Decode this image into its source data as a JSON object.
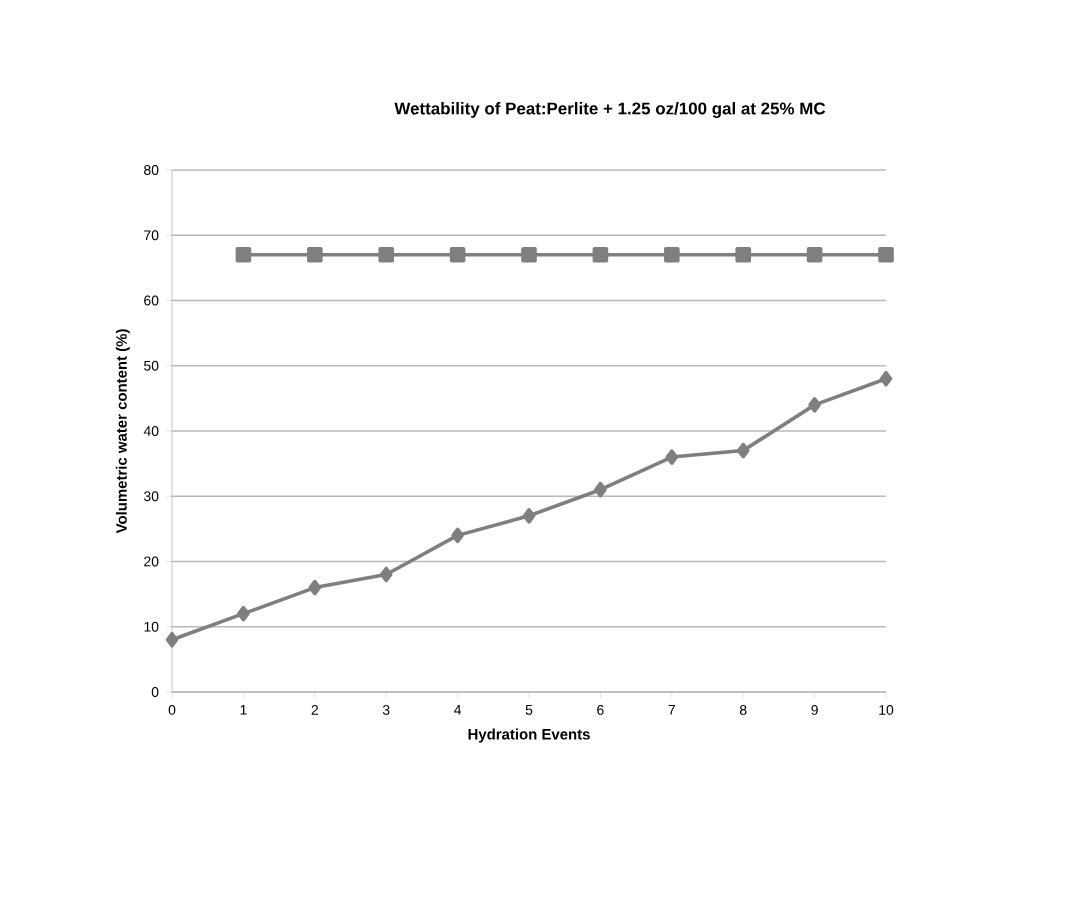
{
  "chart_data": {
    "type": "line",
    "title": "Wettability of Peat:Perlite + 1.25 oz/100 gal at 25% MC",
    "xlabel": "Hydration Events",
    "ylabel": "Volumetric water content (%)",
    "x": [
      0,
      1,
      2,
      3,
      4,
      5,
      6,
      7,
      8,
      9,
      10
    ],
    "series": [
      {
        "color": "#7f7f7f",
        "marker": "diamond",
        "values": [
          8,
          12,
          16,
          18,
          24,
          27,
          31,
          36,
          37,
          44,
          48
        ]
      },
      {
        "color": "#7f7f7f",
        "marker": "square",
        "x": [
          1,
          2,
          3,
          4,
          5,
          6,
          7,
          8,
          9,
          10
        ],
        "values": [
          67,
          67,
          67,
          67,
          67,
          67,
          67,
          67,
          67,
          67
        ]
      }
    ],
    "xlim": [
      0,
      10
    ],
    "xticks": [
      0,
      1,
      2,
      3,
      4,
      5,
      6,
      7,
      8,
      9,
      10
    ],
    "ylim": [
      0,
      80
    ],
    "yticks": [
      0,
      10,
      20,
      30,
      40,
      50,
      60,
      70,
      80
    ],
    "grid": "y",
    "line_style": "solid"
  }
}
